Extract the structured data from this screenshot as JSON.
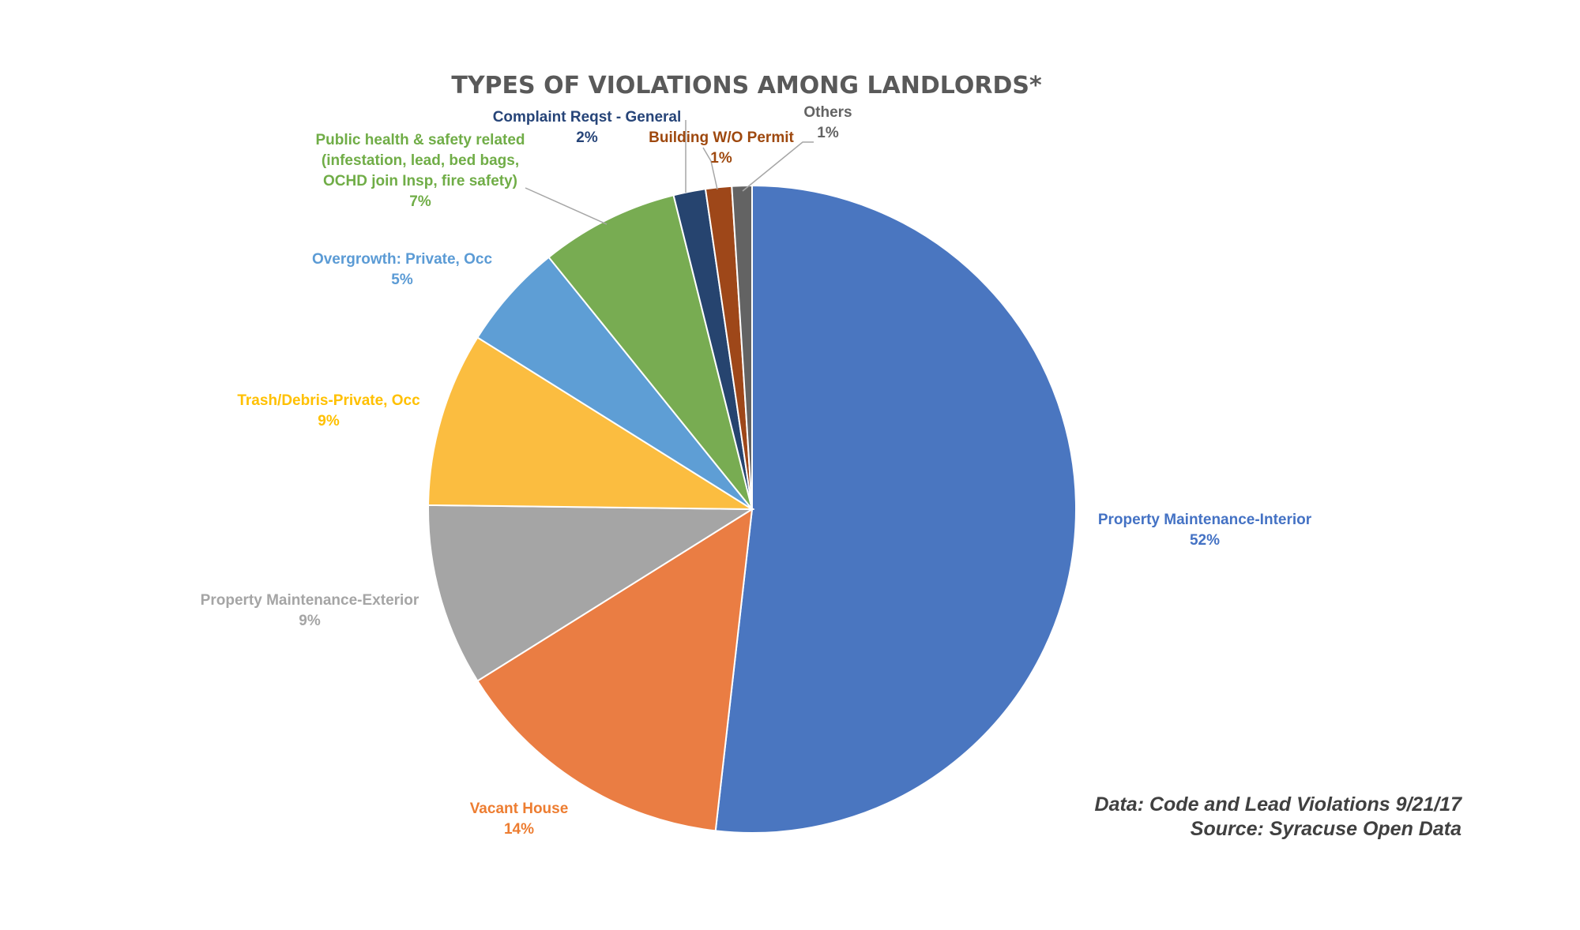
{
  "chart_data": {
    "type": "pie",
    "title": "TYPES OF VIOLATIONS AMONG LANDLORDS*",
    "slices": [
      {
        "label_lines": [
          "Property Maintenance-Interior"
        ],
        "value_label": "52%",
        "value": 51.8,
        "color": "#4a76c0"
      },
      {
        "label_lines": [
          "Vacant House"
        ],
        "value_label": "14%",
        "value": 14.3,
        "color": "#ea7d43"
      },
      {
        "label_lines": [
          "Property Maintenance-Exterior"
        ],
        "value_label": "9%",
        "value": 9.1,
        "color": "#a5a5a5"
      },
      {
        "label_lines": [
          "Trash/Debris-Private,  Occ"
        ],
        "value_label": "9%",
        "value": 8.7,
        "color": "#fbbd40"
      },
      {
        "label_lines": [
          "Overgrowth: Private, Occ"
        ],
        "value_label": "5%",
        "value": 5.3,
        "color": "#5e9ed5"
      },
      {
        "label_lines": [
          "Public health & safety related",
          "(infestation, lead, bed bags,",
          "OCHD join Insp, fire safety)"
        ],
        "value_label": "7%",
        "value": 6.9,
        "color": "#78ac52"
      },
      {
        "label_lines": [
          "Complaint Reqst - General"
        ],
        "value_label": "2%",
        "value": 1.6,
        "color": "#26446f"
      },
      {
        "label_lines": [
          "Building W/O Permit"
        ],
        "value_label": "1%",
        "value": 1.3,
        "color": "#9e4719"
      },
      {
        "label_lines": [
          "Others"
        ],
        "value_label": "1%",
        "value": 1.0,
        "color": "#636363"
      }
    ],
    "label_colors": [
      "#4472c4",
      "#ed7d31",
      "#a5a5a5",
      "#ffc000",
      "#5b9bd5",
      "#70ad47",
      "#264478",
      "#9e480e",
      "#636363"
    ]
  },
  "notes": {
    "line1": "Data: Code and Lead Violations 9/21/17",
    "line2": "Source: Syracuse Open Data"
  }
}
